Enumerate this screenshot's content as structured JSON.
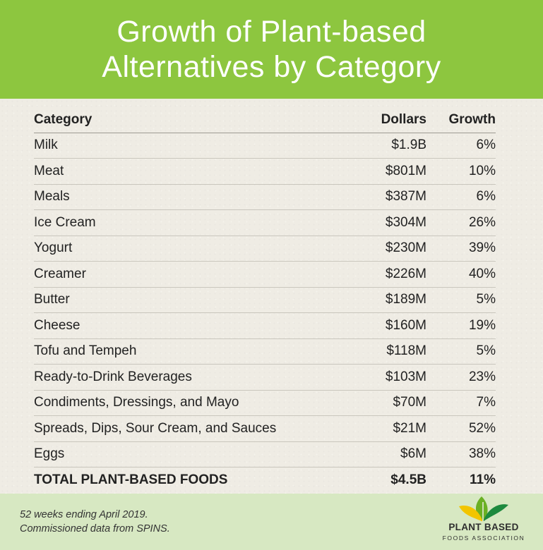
{
  "title": {
    "line1": "Growth of Plant-based",
    "line2": "Alternatives by Category"
  },
  "colors": {
    "header": "#8dc63f",
    "background": "#efece4",
    "footer": "#d7e8c2",
    "text": "#222222"
  },
  "chart_data": {
    "type": "table",
    "title": "Growth of Plant-based Alternatives by Category",
    "columns": [
      "Category",
      "Dollars",
      "Growth"
    ],
    "rows": [
      [
        "Milk",
        "$1.9B",
        "6%"
      ],
      [
        "Meat",
        "$801M",
        "10%"
      ],
      [
        "Meals",
        "$387M",
        "6%"
      ],
      [
        "Ice Cream",
        "$304M",
        "26%"
      ],
      [
        "Yogurt",
        "$230M",
        "39%"
      ],
      [
        "Creamer",
        "$226M",
        "40%"
      ],
      [
        "Butter",
        "$189M",
        "5%"
      ],
      [
        "Cheese",
        "$160M",
        "19%"
      ],
      [
        "Tofu and Tempeh",
        "$118M",
        "5%"
      ],
      [
        "Ready-to-Drink Beverages",
        "$103M",
        "23%"
      ],
      [
        "Condiments, Dressings, and Mayo",
        "$70M",
        "7%"
      ],
      [
        "Spreads, Dips, Sour Cream, and Sauces",
        "$21M",
        "52%"
      ],
      [
        "Eggs",
        "$6M",
        "38%"
      ]
    ],
    "total": [
      "TOTAL PLANT-BASED FOODS",
      "$4.5B",
      "11%"
    ]
  },
  "footer": {
    "note_line1": "52 weeks ending April 2019.",
    "note_line2": "Commissioned data from SPINS."
  },
  "logo": {
    "line1": "PLANT BASED",
    "line2": "FOODS ASSOCIATION"
  }
}
